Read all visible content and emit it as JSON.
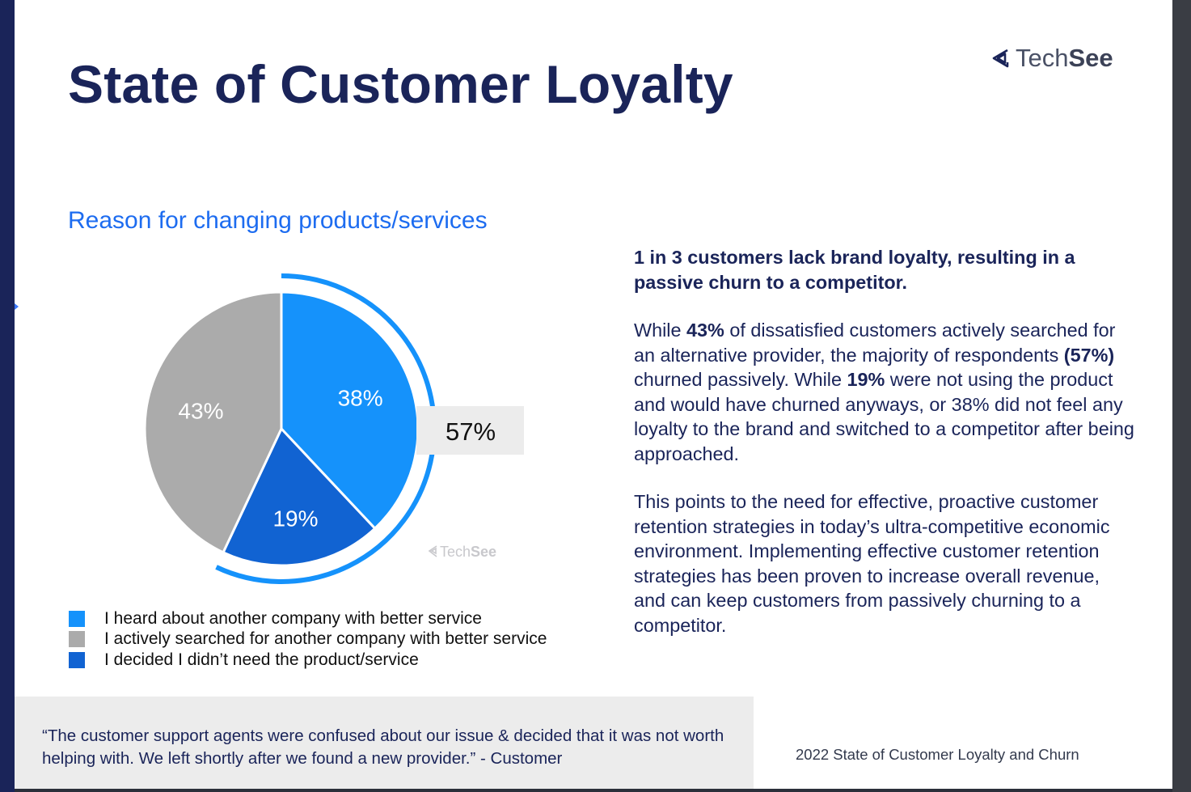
{
  "slide": {
    "title": "State of Customer Loyalty",
    "logo": {
      "icon": "techsee-logo-icon",
      "text_light": "Tech",
      "text_bold": "See"
    },
    "subtitle": "Reason for changing products/services"
  },
  "chart_data": {
    "type": "pie",
    "title": "Reason for changing products/services",
    "start_angle_deg": 0,
    "direction": "clockwise",
    "slices": [
      {
        "label": "I heard about another company with better service",
        "value": 38,
        "display": "38%",
        "color": "#1592fb"
      },
      {
        "label": "I decided I didn’t need the product/service",
        "value": 19,
        "display": "19%",
        "color": "#1163d2"
      },
      {
        "label": "I actively searched for another company with better service",
        "value": 43,
        "display": "43%",
        "color": "#ababab"
      }
    ],
    "highlight": {
      "label": "57%",
      "value": 57,
      "covers": [
        0,
        1
      ],
      "color": "#1592fb"
    },
    "legend": [
      {
        "label": "I heard about another company with better service",
        "color": "#1592fb"
      },
      {
        "label": "I actively searched for another company with better service",
        "color": "#ababab"
      },
      {
        "label": "I decided I didn’t need the product/service",
        "color": "#1163d2"
      }
    ],
    "watermark": {
      "light": "Tech",
      "bold": "See"
    }
  },
  "content": {
    "lead": "1 in 3 customers lack brand loyalty, resulting in a passive churn to a competitor.",
    "para1": {
      "t1": "While ",
      "b1": "43%",
      "t2": " of dissatisfied customers actively searched for an alternative provider, the majority of respondents ",
      "b2": "(57%)",
      "t3": " churned passively. While ",
      "b3": "19%",
      "t4": " were not using the product and would have churned anyways, or 38% did not feel any loyalty to the brand and switched to a competitor after being approached."
    },
    "para2": "This points to the need for effective, proactive customer retention strategies in today’s ultra-competitive economic environment. Implementing effective customer retention strategies has been proven to increase overall revenue, and can keep customers from passively churning to a competitor."
  },
  "quote": "“The customer support agents were confused about our issue & decided that it was not worth helping with. We left shortly after we found a new provider.” - Customer",
  "footer": "2022 State of Customer Loyalty and Churn"
}
